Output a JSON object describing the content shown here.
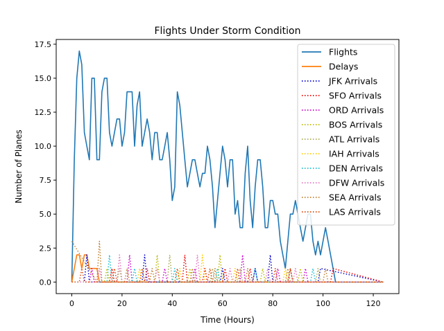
{
  "chart_data": {
    "type": "line",
    "title": "Flights Under Storm Condition",
    "xlabel": "Time (Hours)",
    "ylabel": "Number of Planes",
    "xlim": [
      -6.2,
      130.2
    ],
    "ylim": [
      -0.85,
      17.85
    ],
    "xticks": [
      0,
      20,
      40,
      60,
      80,
      100,
      120
    ],
    "xtick_labels": [
      "0",
      "20",
      "40",
      "60",
      "80",
      "100",
      "120"
    ],
    "yticks": [
      0.0,
      2.5,
      5.0,
      7.5,
      10.0,
      12.5,
      15.0,
      17.5
    ],
    "ytick_labels": [
      "0.0",
      "2.5",
      "5.0",
      "7.5",
      "10.0",
      "12.5",
      "15.0",
      "17.5"
    ],
    "grid": false,
    "legend_position": "upper-right",
    "series": [
      {
        "name": "Flights",
        "color": "#1f77b4",
        "style": "solid",
        "x": [
          0,
          1,
          2,
          3,
          4,
          5,
          6,
          7,
          8,
          9,
          10,
          11,
          12,
          13,
          14,
          15,
          16,
          17,
          18,
          19,
          20,
          21,
          22,
          23,
          24,
          25,
          26,
          27,
          28,
          29,
          30,
          31,
          32,
          33,
          34,
          35,
          36,
          37,
          38,
          39,
          40,
          41,
          42,
          43,
          44,
          45,
          46,
          47,
          48,
          49,
          50,
          51,
          52,
          53,
          54,
          55,
          56,
          57,
          58,
          59,
          60,
          61,
          62,
          63,
          64,
          65,
          66,
          67,
          68,
          69,
          70,
          71,
          72,
          73,
          74,
          75,
          76,
          77,
          78,
          79,
          80,
          81,
          82,
          83,
          84,
          85,
          86,
          87,
          88,
          89,
          90,
          91,
          92,
          93,
          94,
          95,
          96,
          97,
          98,
          99,
          100,
          101,
          102,
          103,
          104,
          105,
          110,
          115,
          120,
          124
        ],
        "y": [
          0,
          9,
          15,
          17,
          16,
          11,
          10,
          9,
          15,
          15,
          9,
          9,
          14,
          15,
          15,
          11,
          10,
          11,
          12,
          12,
          10,
          11,
          14,
          14,
          14,
          10,
          13,
          14,
          10,
          11,
          12,
          11,
          9,
          11,
          11,
          9,
          9,
          10,
          11,
          9,
          6,
          7,
          14,
          13,
          11,
          9,
          7,
          8,
          9,
          9,
          8,
          7,
          8,
          8,
          10,
          9,
          7,
          4,
          6,
          8,
          10,
          9,
          7,
          9,
          9,
          5,
          6,
          4,
          4,
          8,
          10,
          6,
          4,
          7,
          9,
          9,
          7,
          4,
          4,
          6,
          6,
          5,
          5,
          3,
          2,
          1,
          3,
          5,
          5,
          6,
          5,
          4,
          3,
          4,
          5,
          5,
          3,
          2,
          3,
          2,
          3,
          4,
          3,
          2,
          1,
          0,
          0,
          0,
          0,
          0
        ]
      },
      {
        "name": "Delays",
        "color": "#ff7f0e",
        "style": "solid",
        "x": [
          0,
          1,
          2,
          3,
          4,
          5,
          6,
          7,
          8,
          9,
          10,
          11,
          12,
          124
        ],
        "y": [
          0,
          1,
          2,
          2,
          1,
          2,
          2,
          1,
          1,
          1,
          1,
          0,
          0,
          0
        ]
      },
      {
        "name": "JFK Arrivals",
        "color": "#0000cc",
        "style": "dotted",
        "x": [
          0,
          5,
          6,
          7,
          10,
          20,
          28,
          29,
          30,
          44,
          50,
          59,
          60,
          61,
          72,
          73,
          74,
          78,
          79,
          80,
          98,
          99,
          124
        ],
        "y": [
          0,
          0,
          2,
          0,
          0,
          0,
          0,
          2,
          0,
          0,
          0,
          0,
          1,
          0,
          0,
          1,
          0,
          0,
          2,
          0,
          0,
          1,
          0
        ]
      },
      {
        "name": "SFO Arrivals",
        "color": "#ee0000",
        "style": "dotted",
        "x": [
          0,
          15,
          16,
          17,
          29,
          30,
          31,
          44,
          45,
          46,
          52,
          53,
          54,
          60,
          61,
          62,
          70,
          71,
          72,
          86,
          87,
          88,
          103,
          104,
          124
        ],
        "y": [
          0,
          0,
          1,
          0,
          0,
          1,
          0,
          0,
          2,
          0,
          0,
          1,
          0,
          0,
          1,
          0,
          0,
          1,
          0,
          0,
          1,
          0,
          0,
          1,
          0
        ]
      },
      {
        "name": "ORD Arrivals",
        "color": "#cc00cc",
        "style": "dotted",
        "x": [
          0,
          7,
          8,
          9,
          22,
          23,
          24,
          36,
          37,
          38,
          48,
          49,
          50,
          67,
          68,
          69,
          81,
          82,
          83,
          92,
          93,
          94,
          124
        ],
        "y": [
          0,
          0,
          1,
          0,
          0,
          2,
          0,
          0,
          1,
          0,
          0,
          1,
          0,
          0,
          2,
          0,
          0,
          1,
          0,
          0,
          1,
          0,
          0
        ]
      },
      {
        "name": "BOS Arrivals",
        "color": "#bbbb00",
        "style": "dotted",
        "x": [
          0,
          13,
          14,
          15,
          33,
          34,
          35,
          46,
          47,
          48,
          58,
          59,
          60,
          75,
          76,
          77,
          90,
          91,
          92,
          124
        ],
        "y": [
          0,
          0,
          1,
          0,
          0,
          2,
          0,
          0,
          1,
          0,
          0,
          2,
          0,
          0,
          1,
          0,
          0,
          1,
          0,
          0
        ]
      },
      {
        "name": "ATL Arrivals",
        "color": "#aaaa55",
        "style": "dotted",
        "x": [
          0,
          18,
          19,
          20,
          38,
          39,
          40,
          55,
          56,
          57,
          66,
          67,
          68,
          86,
          87,
          88,
          97,
          98,
          99,
          124
        ],
        "y": [
          0,
          0,
          1,
          0,
          0,
          2,
          0,
          0,
          1,
          0,
          0,
          1,
          0,
          0,
          1,
          0,
          0,
          1,
          0,
          0
        ]
      },
      {
        "name": "IAH Arrivals",
        "color": "#ffcc00",
        "style": "dotted",
        "x": [
          0,
          26,
          27,
          28,
          42,
          43,
          44,
          51,
          52,
          53,
          64,
          65,
          66,
          84,
          85,
          86,
          124
        ],
        "y": [
          0,
          0,
          1,
          0,
          0,
          1,
          0,
          0,
          2,
          0,
          0,
          1,
          0,
          0,
          1,
          0,
          0
        ]
      },
      {
        "name": "DEN Arrivals",
        "color": "#17becf",
        "style": "dotted",
        "x": [
          0,
          14,
          15,
          16,
          24,
          25,
          26,
          40,
          41,
          42,
          57,
          58,
          59,
          72,
          73,
          74,
          95,
          96,
          97,
          124
        ],
        "y": [
          0,
          0,
          2,
          0,
          0,
          1,
          0,
          0,
          1,
          0,
          0,
          1,
          0,
          0,
          1,
          0,
          0,
          1,
          0,
          0
        ]
      },
      {
        "name": "DFW Arrivals",
        "color": "#e377c2",
        "style": "dotted",
        "x": [
          0,
          10,
          11,
          12,
          18,
          19,
          20,
          33,
          34,
          35,
          49,
          50,
          51,
          62,
          63,
          64,
          77,
          78,
          79,
          88,
          89,
          90,
          124
        ],
        "y": [
          0,
          0,
          1,
          0,
          0,
          2,
          0,
          0,
          1,
          0,
          0,
          2,
          0,
          0,
          1,
          0,
          0,
          1,
          0,
          0,
          1,
          0,
          0
        ]
      },
      {
        "name": "SEA Arrivals",
        "color": "#c08030",
        "style": "dotted",
        "x": [
          0,
          10,
          11,
          12,
          21,
          22,
          23,
          31,
          32,
          33,
          47,
          48,
          49,
          56,
          57,
          58,
          69,
          70,
          71,
          85,
          86,
          87,
          100,
          101,
          102,
          124
        ],
        "y": [
          3,
          0,
          3,
          0,
          0,
          1,
          0,
          0,
          1,
          0,
          0,
          1,
          0,
          0,
          1,
          0,
          0,
          1,
          0,
          0,
          1,
          0,
          0,
          1,
          0,
          0
        ]
      },
      {
        "name": "LAS Arrivals",
        "color": "#dd4400",
        "style": "dotted",
        "x": [
          0,
          3,
          4,
          5,
          16,
          17,
          18,
          27,
          28,
          29,
          41,
          42,
          43,
          54,
          55,
          56,
          65,
          66,
          67,
          80,
          81,
          82,
          124
        ],
        "y": [
          0,
          0,
          1,
          0,
          0,
          1,
          0,
          0,
          1,
          0,
          0,
          1,
          0,
          0,
          1,
          0,
          0,
          1,
          0,
          0,
          1,
          0,
          0
        ]
      }
    ]
  }
}
